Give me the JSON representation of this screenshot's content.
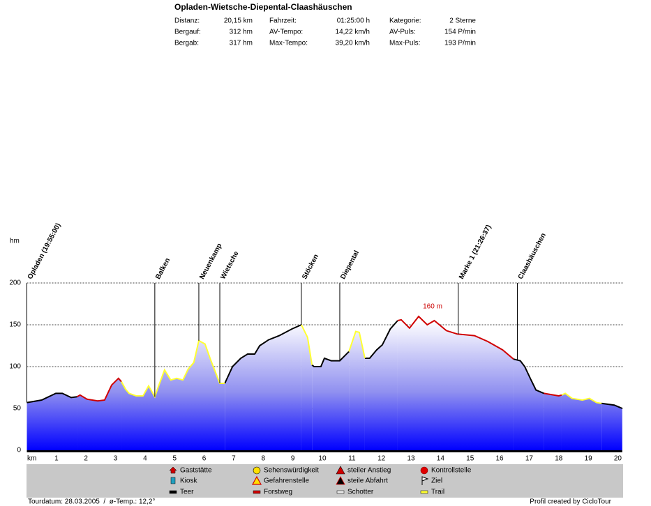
{
  "header": {
    "title": "Opladen-Wietsche-Diepental-Claashäuschen",
    "rows": [
      [
        "Distanz:",
        "20,15 km",
        "Fahrzeit:",
        "01:25:00 h",
        "Kategorie:",
        "2 Sterne"
      ],
      [
        "Bergauf:",
        "312 hm",
        "AV-Tempo:",
        "14,22 km/h",
        "AV-Puls:",
        "154 P/min"
      ],
      [
        "Bergab:",
        "317 hm",
        "Max-Tempo:",
        "39,20 km/h",
        "Max-Puls:",
        "193 P/min"
      ]
    ]
  },
  "chart_data": {
    "type": "area",
    "xlabel": "km",
    "ylabel": "hm",
    "xlim": [
      0,
      20.15
    ],
    "ylim": [
      0,
      200
    ],
    "xticks": [
      1,
      2,
      3,
      4,
      5,
      6,
      7,
      8,
      9,
      10,
      11,
      12,
      13,
      14,
      15,
      16,
      17,
      18,
      19,
      20
    ],
    "yticks": [
      0,
      50,
      100,
      150,
      200
    ],
    "grid": true,
    "series": [
      {
        "name": "Teer",
        "color": "#000000",
        "x": [
          0,
          0.5,
          0.98,
          1.2,
          1.5,
          1.7,
          null,
          6.7,
          6.96,
          7.24,
          7.47,
          7.71,
          7.88,
          8.18,
          8.54,
          8.97,
          9.29,
          null,
          9.65,
          9.72,
          9.95,
          10.07,
          10.3,
          10.59,
          10.9,
          null,
          11.44,
          11.6,
          11.84,
          12.03,
          12.3,
          12.55,
          null,
          16.47,
          16.7,
          16.85,
          17.05,
          17.23,
          17.5,
          null,
          19.45,
          19.88,
          20.15
        ],
        "values": [
          57,
          60,
          68,
          68,
          63,
          64,
          null,
          80,
          100,
          110,
          115,
          115,
          125,
          132,
          137,
          145,
          150,
          null,
          102,
          100,
          100,
          110,
          107,
          107,
          118,
          null,
          110,
          110,
          120,
          126,
          145,
          155,
          null,
          109,
          107,
          100,
          85,
          72,
          68,
          null,
          56,
          54,
          50
        ]
      },
      {
        "name": "Forstweg",
        "color": "#d00000",
        "x": [
          1.7,
          1.8,
          2.04,
          2.4,
          2.63,
          2.87,
          3.1,
          3.2,
          null,
          12.55,
          12.67,
          12.95,
          13.26,
          13.55,
          13.79,
          14.2,
          14.56,
          15.15,
          15.6,
          16.1,
          16.47,
          null,
          17.5,
          18.0,
          18.1
        ],
        "values": [
          64,
          66,
          61,
          59,
          60,
          78,
          86,
          82,
          null,
          155,
          156,
          146,
          160,
          150,
          155,
          143,
          139,
          137,
          130,
          120,
          109,
          null,
          68,
          65,
          66
        ]
      },
      {
        "name": "Schotter",
        "color": "#e8e8e8",
        "x": [],
        "values": []
      },
      {
        "name": "Trail",
        "color": "#ffff33",
        "x": [
          3.2,
          3.34,
          3.46,
          3.7,
          3.93,
          4.12,
          4.33,
          4.47,
          4.66,
          4.87,
          5.07,
          5.28,
          5.46,
          5.65,
          5.82,
          6.03,
          6.22,
          6.53,
          6.7,
          null,
          9.29,
          9.5,
          9.65,
          null,
          10.9,
          11.13,
          11.25,
          11.44,
          null,
          18.1,
          18.22,
          18.45,
          18.8,
          19.04,
          19.28,
          19.45
        ],
        "values": [
          82,
          73,
          68,
          65,
          65,
          77,
          64,
          78,
          96,
          84,
          86,
          84,
          97,
          105,
          131,
          127,
          108,
          80,
          80,
          null,
          150,
          135,
          102,
          null,
          118,
          142,
          141,
          110,
          null,
          66,
          68,
          62,
          60,
          62,
          57,
          56
        ]
      }
    ],
    "waypoints": [
      {
        "label": "Opladen (19:55:00)",
        "x": 0
      },
      {
        "label": "Balken",
        "x": 4.33
      },
      {
        "label": "Neuenkamp",
        "x": 5.82
      },
      {
        "label": "Wietsche",
        "x": 6.53
      },
      {
        "label": "Stöcken",
        "x": 9.29
      },
      {
        "label": "Diepental",
        "x": 10.59
      },
      {
        "label": "Marke 1 (21:26:37)",
        "x": 14.6
      },
      {
        "label": "Claashäuschen",
        "x": 16.6
      }
    ],
    "annotations": [
      {
        "text": "160 m",
        "x": 13.26,
        "y": 160
      }
    ],
    "symbol_legend": [
      "Gaststätte",
      "Sehenswürdigkeit",
      "steiler Anstieg",
      "Kontrollstelle",
      "Kiosk",
      "Gefahrenstelle",
      "steile Abfahrt",
      "Ziel"
    ]
  },
  "footer": {
    "left": "Tourdatum: 28.03.2005  /  ø-Temp.: 12,2°",
    "right": "Profil created by CicloTour"
  }
}
